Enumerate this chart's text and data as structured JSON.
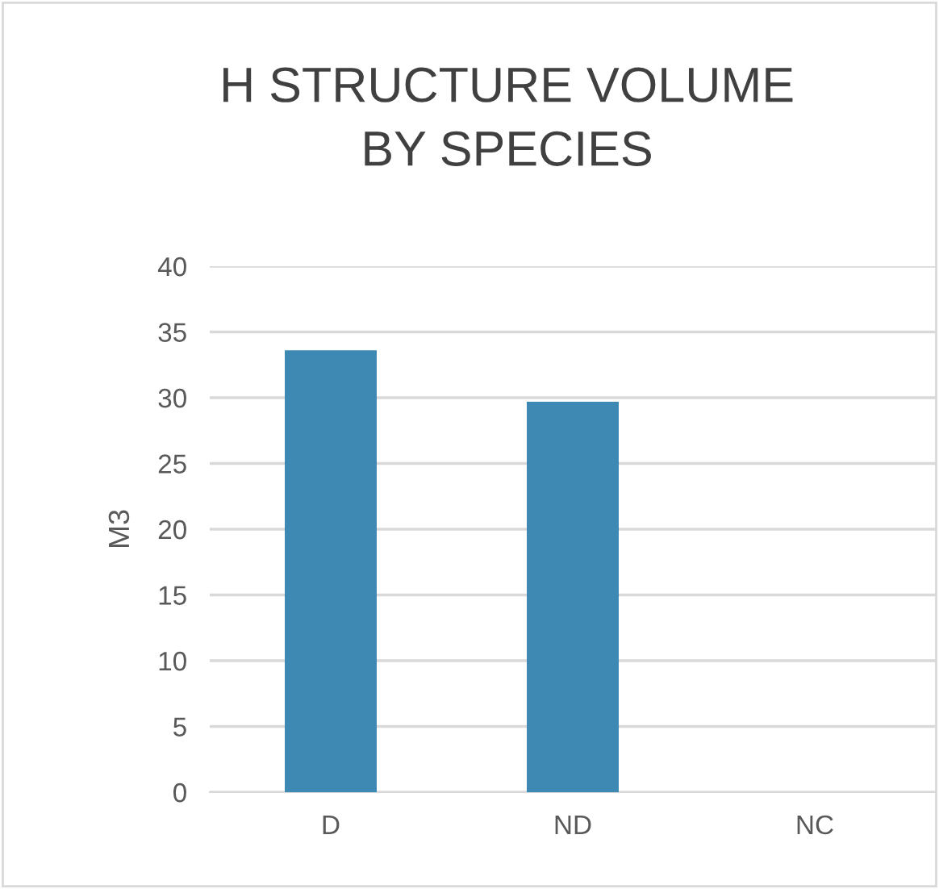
{
  "chart_data": {
    "type": "bar",
    "title": "H STRUCTURE VOLUME\nBY SPECIES",
    "ylabel": "M3",
    "categories": [
      "D",
      "ND",
      "NC"
    ],
    "series": [
      {
        "color": "#3e88b4",
        "values": [
          33.6,
          29.7,
          0
        ]
      }
    ],
    "ylim": [
      0,
      40
    ],
    "yticks": [
      0,
      5,
      10,
      15,
      20,
      25,
      30,
      35,
      40
    ],
    "grid": "y",
    "legend": false
  }
}
